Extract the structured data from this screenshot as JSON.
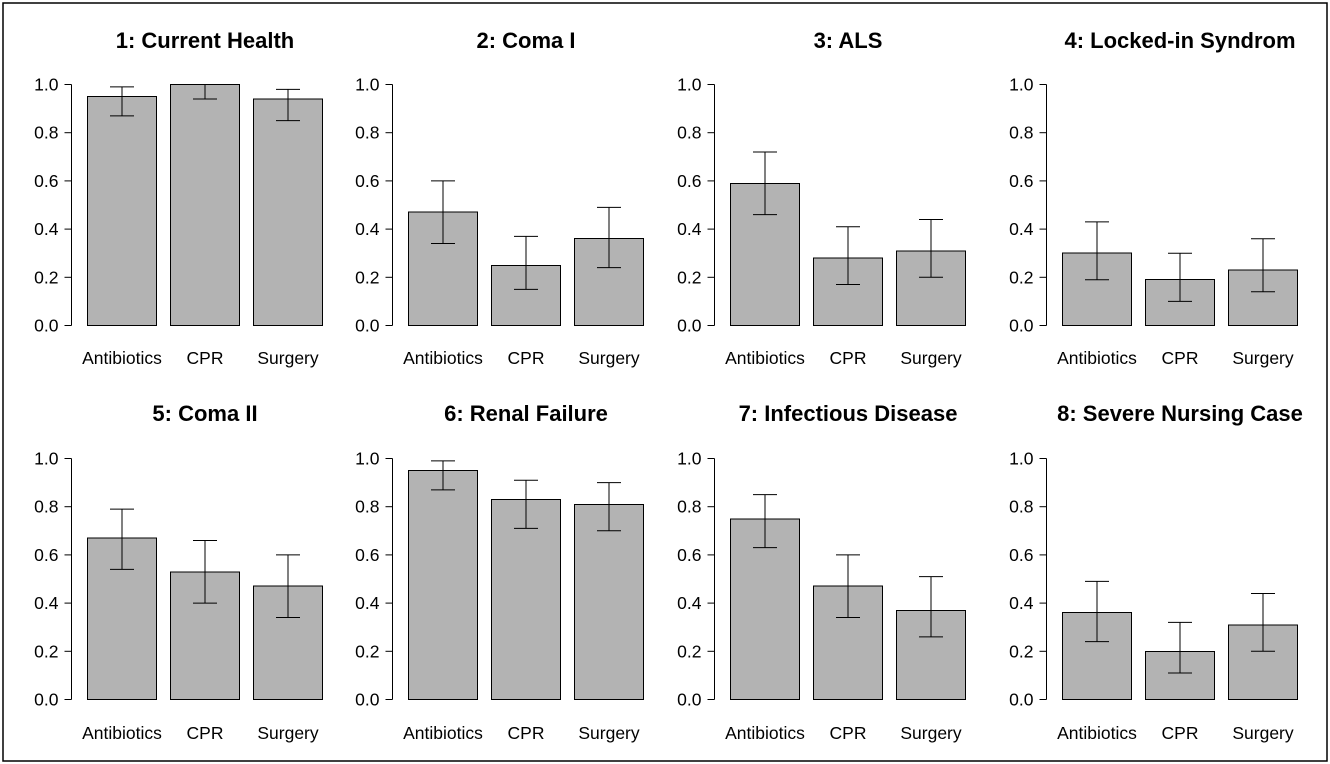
{
  "colors": {
    "bar_fill": "#b3b3b3",
    "line_color": "#000000"
  },
  "chart_data": [
    {
      "type": "bar",
      "title": "1: Current Health",
      "categories": [
        "Antibiotics",
        "CPR",
        "Surgery"
      ],
      "values": [
        0.95,
        1.0,
        0.94
      ],
      "error_bars": {
        "lower": [
          0.87,
          0.94,
          0.85
        ],
        "upper": [
          0.99,
          1.0,
          0.98
        ]
      },
      "ylim": [
        0,
        1
      ],
      "yticks": [
        "0.0",
        "0.2",
        "0.4",
        "0.6",
        "0.8",
        "1.0"
      ],
      "grid": false,
      "legend": false
    },
    {
      "type": "bar",
      "title": "2: Coma I",
      "categories": [
        "Antibiotics",
        "CPR",
        "Surgery"
      ],
      "values": [
        0.47,
        0.25,
        0.36
      ],
      "error_bars": {
        "lower": [
          0.34,
          0.15,
          0.24
        ],
        "upper": [
          0.6,
          0.37,
          0.49
        ]
      },
      "ylim": [
        0,
        1
      ],
      "yticks": [
        "0.0",
        "0.2",
        "0.4",
        "0.6",
        "0.8",
        "1.0"
      ],
      "grid": false,
      "legend": false
    },
    {
      "type": "bar",
      "title": "3: ALS",
      "categories": [
        "Antibiotics",
        "CPR",
        "Surgery"
      ],
      "values": [
        0.59,
        0.28,
        0.31
      ],
      "error_bars": {
        "lower": [
          0.46,
          0.17,
          0.2
        ],
        "upper": [
          0.72,
          0.41,
          0.44
        ]
      },
      "ylim": [
        0,
        1
      ],
      "yticks": [
        "0.0",
        "0.2",
        "0.4",
        "0.6",
        "0.8",
        "1.0"
      ],
      "grid": false,
      "legend": false
    },
    {
      "type": "bar",
      "title": "4: Locked-in Syndrom",
      "categories": [
        "Antibiotics",
        "CPR",
        "Surgery"
      ],
      "values": [
        0.3,
        0.19,
        0.23
      ],
      "error_bars": {
        "lower": [
          0.19,
          0.1,
          0.14
        ],
        "upper": [
          0.43,
          0.3,
          0.36
        ]
      },
      "ylim": [
        0,
        1
      ],
      "yticks": [
        "0.0",
        "0.2",
        "0.4",
        "0.6",
        "0.8",
        "1.0"
      ],
      "grid": false,
      "legend": false
    },
    {
      "type": "bar",
      "title": "5: Coma II",
      "categories": [
        "Antibiotics",
        "CPR",
        "Surgery"
      ],
      "values": [
        0.67,
        0.53,
        0.47
      ],
      "error_bars": {
        "lower": [
          0.54,
          0.4,
          0.34
        ],
        "upper": [
          0.79,
          0.66,
          0.6
        ]
      },
      "ylim": [
        0,
        1
      ],
      "yticks": [
        "0.0",
        "0.2",
        "0.4",
        "0.6",
        "0.8",
        "1.0"
      ],
      "grid": false,
      "legend": false
    },
    {
      "type": "bar",
      "title": "6: Renal Failure",
      "categories": [
        "Antibiotics",
        "CPR",
        "Surgery"
      ],
      "values": [
        0.95,
        0.83,
        0.81
      ],
      "error_bars": {
        "lower": [
          0.87,
          0.71,
          0.7
        ],
        "upper": [
          0.99,
          0.91,
          0.9
        ]
      },
      "ylim": [
        0,
        1
      ],
      "yticks": [
        "0.0",
        "0.2",
        "0.4",
        "0.6",
        "0.8",
        "1.0"
      ],
      "grid": false,
      "legend": false
    },
    {
      "type": "bar",
      "title": "7: Infectious Disease",
      "categories": [
        "Antibiotics",
        "CPR",
        "Surgery"
      ],
      "values": [
        0.75,
        0.47,
        0.37
      ],
      "error_bars": {
        "lower": [
          0.63,
          0.34,
          0.26
        ],
        "upper": [
          0.85,
          0.6,
          0.51
        ]
      },
      "ylim": [
        0,
        1
      ],
      "yticks": [
        "0.0",
        "0.2",
        "0.4",
        "0.6",
        "0.8",
        "1.0"
      ],
      "grid": false,
      "legend": false
    },
    {
      "type": "bar",
      "title": "8: Severe Nursing Case",
      "categories": [
        "Antibiotics",
        "CPR",
        "Surgery"
      ],
      "values": [
        0.36,
        0.2,
        0.31
      ],
      "error_bars": {
        "lower": [
          0.24,
          0.11,
          0.2
        ],
        "upper": [
          0.49,
          0.32,
          0.44
        ]
      },
      "ylim": [
        0,
        1
      ],
      "yticks": [
        "0.0",
        "0.2",
        "0.4",
        "0.6",
        "0.8",
        "1.0"
      ],
      "grid": false,
      "legend": false
    }
  ]
}
